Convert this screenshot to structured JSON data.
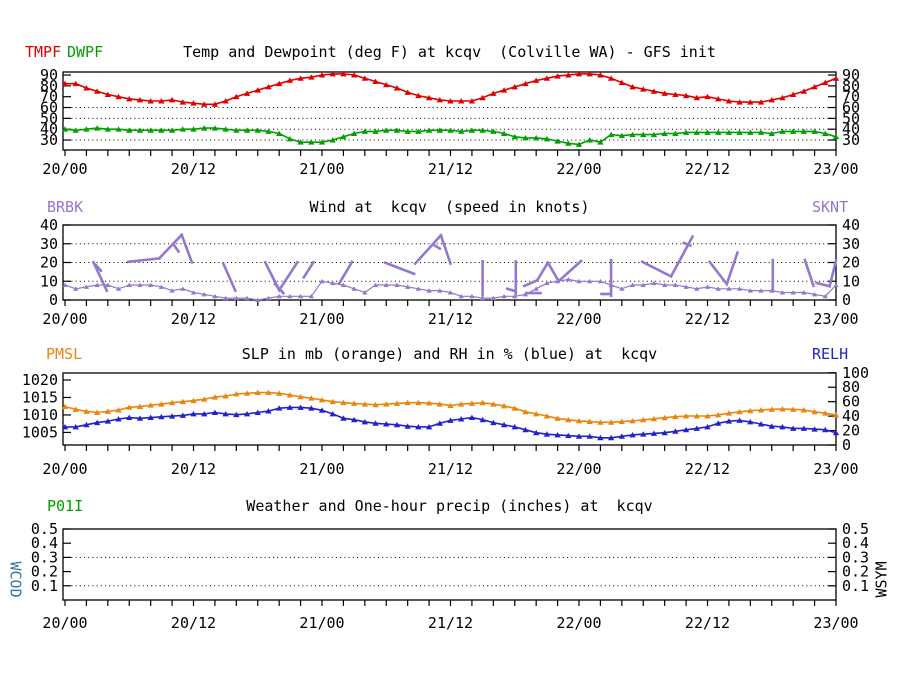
{
  "colors": {
    "temp": "#e00000",
    "dewpoint": "#00a000",
    "wind": "#9477cf",
    "pressure": "#e8860d",
    "humidity": "#2222cc",
    "wcod": "#3973ac",
    "wsym": "#000000",
    "axis": "#000000",
    "background": "#ffffff"
  },
  "headers": {
    "p1_left1": "TMPF",
    "p1_left2": "DWPF",
    "p1_title": "Temp and Dewpoint (deg F) at kcqv  (Colville WA) - GFS init",
    "p2_left": "BRBK",
    "p2_title": "Wind at  kcqv  (speed in knots)",
    "p2_right": "SKNT",
    "p3_left": "PMSL",
    "p3_title": "SLP in mb (orange) and RH in % (blue) at  kcqv",
    "p3_right": "RELH",
    "p4_left": "P01I",
    "p4_title": "Weather and One-hour precip (inches) at  kcqv",
    "side_left": "WCOD",
    "side_right": "WSYM"
  },
  "x_axis": {
    "labels": [
      "20/00",
      "20/12",
      "21/00",
      "21/12",
      "22/00",
      "22/12",
      "23/00"
    ],
    "label_hours": [
      0,
      12,
      24,
      36,
      48,
      60,
      72
    ],
    "minor_tick_step_hours": 2,
    "total_hours": 72
  },
  "chart_data": [
    {
      "type": "line",
      "panel": "temp_dewpoint",
      "title": "Temp and Dewpoint (deg F) at kcqv  (Colville WA) - GFS init",
      "x_unit": "hours from 20/00, hourly points",
      "yticks": [
        90,
        80,
        70,
        60,
        50,
        40,
        30
      ],
      "grid_values": [
        60,
        50,
        40,
        30
      ],
      "ylim": [
        20.8,
        92.8
      ],
      "series": [
        {
          "name": "TMPF",
          "color_key": "temp",
          "values": [
            82,
            82,
            78,
            75,
            72,
            70,
            68,
            67,
            66,
            66,
            67,
            65,
            64,
            63,
            63,
            66,
            70,
            73,
            76,
            79,
            82,
            85,
            87,
            88,
            90,
            91,
            91,
            90,
            87,
            84,
            81,
            78,
            74,
            71,
            69,
            67,
            66,
            66,
            66,
            69,
            73,
            76,
            79,
            82,
            85,
            87,
            89,
            90,
            91,
            91,
            90,
            87,
            83,
            79,
            77,
            75,
            73,
            72,
            71,
            69,
            70,
            68,
            66,
            65,
            65,
            65,
            67,
            69,
            72,
            75,
            79,
            83,
            87
          ]
        },
        {
          "name": "DWPF",
          "color_key": "dewpoint",
          "values": [
            40,
            39,
            40,
            41,
            40,
            40,
            39,
            39,
            39,
            39,
            39,
            40,
            40,
            41,
            41,
            40,
            39,
            39,
            39,
            38,
            36,
            31,
            28,
            28,
            28,
            30,
            33,
            36,
            38,
            38,
            39,
            39,
            38,
            38,
            39,
            39,
            39,
            38,
            39,
            39,
            38,
            36,
            33,
            32,
            32,
            31,
            29,
            27,
            26,
            30,
            28,
            35,
            34,
            35,
            35,
            35,
            36,
            36,
            37,
            37,
            37,
            37,
            37,
            37,
            37,
            37,
            36,
            38,
            38,
            38,
            38,
            36,
            33
          ]
        }
      ]
    },
    {
      "type": "line",
      "panel": "wind",
      "title": "Wind at  kcqv  (speed in knots)",
      "yticks": [
        40,
        30,
        20,
        10,
        0
      ],
      "grid_values": [
        30,
        20,
        10
      ],
      "ylim": [
        0,
        40
      ],
      "series": [
        {
          "name": "SKNT",
          "color_key": "wind",
          "values": [
            8,
            6,
            7,
            8,
            8,
            6,
            8,
            8,
            8,
            7,
            5,
            6,
            4,
            3,
            2,
            1,
            1,
            1,
            0,
            1,
            2,
            2,
            2,
            2,
            10,
            9,
            8,
            6,
            4,
            8,
            8,
            8,
            7,
            6,
            5,
            5,
            4,
            2,
            2,
            1,
            1,
            2,
            2,
            3,
            6,
            9,
            10,
            11,
            10,
            10,
            10,
            8,
            6,
            8,
            8,
            9,
            8,
            8,
            7,
            6,
            7,
            6,
            6,
            6,
            5,
            5,
            5,
            4,
            4,
            4,
            3,
            2,
            8
          ]
        }
      ],
      "barbs_units": "[hour, knots] polyline segments (wind barb staffs and ticks)",
      "barbs": [
        [
          [
            2.65,
            20.1
          ],
          [
            3.9,
            5.0
          ]
        ],
        [
          [
            2.87,
            18.7
          ],
          [
            3.35,
            15.6
          ]
        ],
        [
          [
            5.9,
            20.4
          ],
          [
            8.8,
            22.2
          ]
        ],
        [
          [
            8.8,
            22.2
          ],
          [
            10.9,
            34.7
          ]
        ],
        [
          [
            10.1,
            29.9
          ],
          [
            10.6,
            25.8
          ]
        ],
        [
          [
            10.9,
            34.7
          ],
          [
            11.85,
            20.1
          ]
        ],
        [
          [
            14.8,
            19.2
          ],
          [
            15.9,
            5.0
          ]
        ],
        [
          [
            18.7,
            20.1
          ],
          [
            20.0,
            5.3
          ],
          [
            21.7,
            20.1
          ]
        ],
        [
          [
            19.6,
            8.5
          ],
          [
            20.4,
            3.7
          ]
        ],
        [
          [
            22.3,
            12.1
          ],
          [
            23.2,
            20.1
          ]
        ],
        [
          [
            25.6,
            8.7
          ],
          [
            26.8,
            20.3
          ]
        ],
        [
          [
            29.9,
            19.9
          ],
          [
            32.6,
            14.0
          ]
        ],
        [
          [
            32.7,
            19.4
          ],
          [
            35.1,
            34.5
          ]
        ],
        [
          [
            34.5,
            29.2
          ],
          [
            35.0,
            27.4
          ]
        ],
        [
          [
            35.1,
            34.5
          ],
          [
            36.0,
            19.4
          ]
        ],
        [
          [
            39.0,
            20.6
          ],
          [
            39.0,
            2.5
          ]
        ],
        [
          [
            41.3,
            6.0
          ],
          [
            42.0,
            4.8
          ]
        ],
        [
          [
            42.1,
            20.6
          ],
          [
            42.1,
            3.4
          ]
        ],
        [
          [
            42.9,
            7.5
          ],
          [
            44.1,
            10.5
          ],
          [
            45.1,
            19.9
          ]
        ],
        [
          [
            43.1,
            3.7
          ],
          [
            44.4,
            3.7
          ]
        ],
        [
          [
            45.1,
            19.9
          ],
          [
            46.1,
            10.1
          ],
          [
            48.2,
            20.8
          ]
        ],
        [
          [
            50.1,
            3.2
          ],
          [
            50.9,
            3.2
          ]
        ],
        [
          [
            51.0,
            21.3
          ],
          [
            51.0,
            2.3
          ]
        ],
        [
          [
            53.9,
            20.4
          ],
          [
            56.6,
            12.6
          ]
        ],
        [
          [
            56.6,
            12.6
          ],
          [
            58.6,
            33.8
          ]
        ],
        [
          [
            57.8,
            30.4
          ],
          [
            58.4,
            29.0
          ]
        ],
        [
          [
            60.2,
            20.3
          ],
          [
            61.8,
            8.5
          ],
          [
            62.8,
            25.3
          ]
        ],
        [
          [
            66.1,
            21.3
          ],
          [
            66.1,
            5.0
          ]
        ],
        [
          [
            69.1,
            21.3
          ],
          [
            69.9,
            7.6
          ]
        ],
        [
          [
            70.2,
            9.1
          ],
          [
            71.4,
            7.3
          ]
        ],
        [
          [
            71.4,
            7.3
          ],
          [
            72.0,
            21.0
          ]
        ]
      ]
    },
    {
      "type": "line",
      "panel": "slp_rh",
      "title": "SLP in mb (orange) and RH in % (blue) at  kcqv",
      "yticks_left": [
        1020,
        1015,
        1010,
        1005
      ],
      "yticks_right": [
        100,
        80,
        60,
        40,
        20,
        0
      ],
      "ylim_left": [
        1001.4,
        1022.0
      ],
      "ylim_right": [
        0,
        99.7
      ],
      "grid_values": [],
      "series": [
        {
          "name": "PMSL",
          "axis": "left",
          "color_key": "pressure",
          "values": [
            1012.4,
            1011.6,
            1011.0,
            1010.7,
            1011.0,
            1011.4,
            1012.2,
            1012.4,
            1012.8,
            1013.1,
            1013.5,
            1013.8,
            1014.1,
            1014.5,
            1015.1,
            1015.4,
            1016.0,
            1016.2,
            1016.4,
            1016.4,
            1016.2,
            1015.7,
            1015.2,
            1014.8,
            1014.3,
            1013.8,
            1013.5,
            1013.3,
            1013.1,
            1012.9,
            1013.1,
            1013.3,
            1013.5,
            1013.5,
            1013.4,
            1013.1,
            1012.7,
            1013.1,
            1013.3,
            1013.5,
            1013.1,
            1012.6,
            1011.9,
            1010.9,
            1010.3,
            1009.7,
            1009.0,
            1008.6,
            1008.3,
            1008.1,
            1007.9,
            1007.9,
            1008.1,
            1008.3,
            1008.6,
            1008.9,
            1009.2,
            1009.5,
            1009.7,
            1009.7,
            1009.7,
            1010.0,
            1010.5,
            1010.9,
            1011.2,
            1011.4,
            1011.6,
            1011.7,
            1011.6,
            1011.4,
            1010.9,
            1010.5,
            1010.0
          ]
        },
        {
          "name": "RELH",
          "axis": "right",
          "color_key": "humidity",
          "values": [
            25,
            25,
            28,
            31,
            33,
            36,
            38,
            37,
            38,
            39,
            40,
            41,
            43,
            43,
            45,
            43,
            42,
            43,
            45,
            47,
            51,
            52,
            52,
            51,
            48,
            43,
            37,
            35,
            32,
            30,
            29,
            28,
            26,
            25,
            25,
            30,
            34,
            36,
            38,
            35,
            31,
            28,
            25,
            21,
            17,
            15,
            14,
            13,
            12,
            12,
            10,
            10,
            12,
            14,
            15,
            16,
            17,
            19,
            21,
            23,
            25,
            30,
            33,
            34,
            32,
            29,
            26,
            25,
            23,
            23,
            22,
            21,
            17
          ]
        }
      ]
    },
    {
      "type": "line",
      "panel": "precip",
      "title": "Weather and One-hour precip (inches) at  kcqv",
      "yticks": [
        0.5,
        0.4,
        0.3,
        0.2,
        0.1
      ],
      "grid_values": [
        0.3,
        0.1
      ],
      "ylim": [
        0,
        0.5
      ],
      "series": [
        {
          "name": "P01I",
          "color_key": "dewpoint",
          "values": []
        }
      ]
    }
  ]
}
